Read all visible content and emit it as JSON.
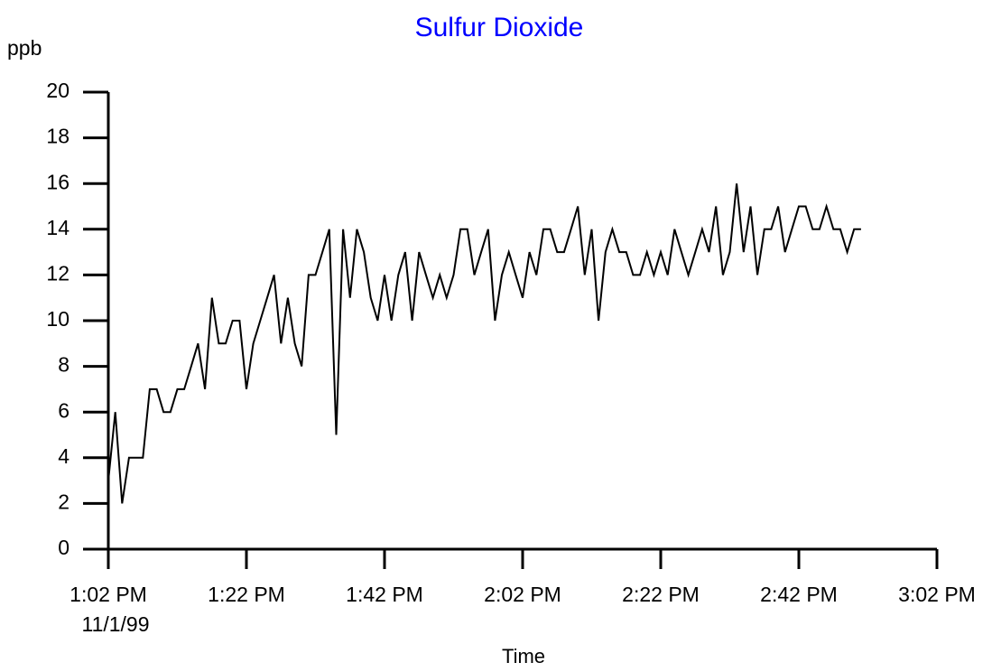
{
  "chart_data": {
    "type": "line",
    "title": "Sulfur Dioxide",
    "y_label": "ppb",
    "x_label": "Time",
    "date_label": "11/1/99",
    "x": [
      "1:02 PM",
      "1:03 PM",
      "1:04 PM",
      "1:05 PM",
      "1:06 PM",
      "1:07 PM",
      "1:08 PM",
      "1:09 PM",
      "1:10 PM",
      "1:11 PM",
      "1:12 PM",
      "1:13 PM",
      "1:14 PM",
      "1:15 PM",
      "1:16 PM",
      "1:17 PM",
      "1:18 PM",
      "1:19 PM",
      "1:20 PM",
      "1:21 PM",
      "1:22 PM",
      "1:23 PM",
      "1:24 PM",
      "1:25 PM",
      "1:26 PM",
      "1:27 PM",
      "1:28 PM",
      "1:29 PM",
      "1:30 PM",
      "1:31 PM",
      "1:32 PM",
      "1:33 PM",
      "1:34 PM",
      "1:35 PM",
      "1:36 PM",
      "1:37 PM",
      "1:38 PM",
      "1:39 PM",
      "1:40 PM",
      "1:41 PM",
      "1:42 PM",
      "1:43 PM",
      "1:44 PM",
      "1:45 PM",
      "1:46 PM",
      "1:47 PM",
      "1:48 PM",
      "1:49 PM",
      "1:50 PM",
      "1:51 PM",
      "1:52 PM",
      "1:53 PM",
      "1:54 PM",
      "1:55 PM",
      "1:56 PM",
      "1:57 PM",
      "1:58 PM",
      "1:59 PM",
      "2:00 PM",
      "2:01 PM",
      "2:02 PM",
      "2:03 PM",
      "2:04 PM",
      "2:05 PM",
      "2:06 PM",
      "2:07 PM",
      "2:08 PM",
      "2:09 PM",
      "2:10 PM",
      "2:11 PM",
      "2:12 PM",
      "2:13 PM",
      "2:14 PM",
      "2:15 PM",
      "2:16 PM",
      "2:17 PM",
      "2:18 PM",
      "2:19 PM",
      "2:20 PM",
      "2:21 PM",
      "2:22 PM",
      "2:23 PM",
      "2:24 PM",
      "2:25 PM",
      "2:26 PM",
      "2:27 PM",
      "2:28 PM",
      "2:29 PM",
      "2:30 PM",
      "2:31 PM",
      "2:32 PM",
      "2:33 PM",
      "2:34 PM",
      "2:35 PM",
      "2:36 PM",
      "2:37 PM",
      "2:38 PM",
      "2:39 PM",
      "2:40 PM",
      "2:41 PM",
      "2:42 PM",
      "2:43 PM",
      "2:44 PM",
      "2:45 PM",
      "2:46 PM",
      "2:47 PM",
      "2:48 PM",
      "2:49 PM",
      "2:50 PM",
      "2:51 PM"
    ],
    "values": [
      3,
      6,
      2,
      4,
      4,
      4,
      7,
      7,
      6,
      6,
      7,
      7,
      8,
      9,
      7,
      11,
      9,
      9,
      10,
      10,
      7,
      9,
      10,
      11,
      12,
      9,
      11,
      9,
      8,
      12,
      12,
      13,
      14,
      5,
      14,
      11,
      14,
      13,
      11,
      10,
      12,
      10,
      12,
      13,
      10,
      13,
      12,
      11,
      12,
      11,
      12,
      14,
      14,
      12,
      13,
      14,
      10,
      12,
      13,
      12,
      11,
      13,
      12,
      14,
      14,
      13,
      13,
      14,
      15,
      12,
      14,
      10,
      13,
      14,
      13,
      13,
      12,
      12,
      13,
      12,
      13,
      12,
      14,
      13,
      12,
      13,
      14,
      13,
      15,
      12,
      13,
      16,
      13,
      15,
      12,
      14,
      14,
      15,
      13,
      14,
      15,
      15,
      14,
      14,
      15,
      14,
      14,
      13,
      14,
      14
    ],
    "color": "#000000",
    "title_color": "#0000ff",
    "xlim": [
      "1:02 PM",
      "3:02 PM"
    ],
    "xticks": [
      "1:02 PM",
      "1:22 PM",
      "1:42 PM",
      "2:02 PM",
      "2:22 PM",
      "2:42 PM",
      "3:02 PM"
    ],
    "ylim": [
      0,
      20
    ],
    "yticks": [
      0,
      2,
      4,
      6,
      8,
      10,
      12,
      14,
      16,
      18,
      20
    ],
    "grid": false
  }
}
